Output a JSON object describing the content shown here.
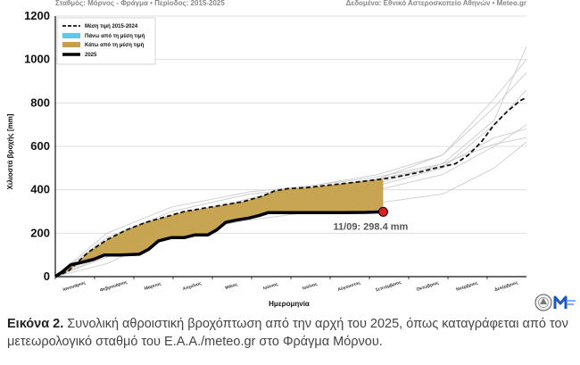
{
  "header": {
    "left": "Σταθμός: Μόρνος - Φράγμα • Περίοδος: 2015-2025",
    "right": "Δεδομένα: Εθνικό Αστεροσκοπείο Αθηνών • Meteo.gr"
  },
  "caption": {
    "label": "Εικόνα 2.",
    "text": "Συνολική αθροιστική βροχόπτωση από την αρχή του 2025, όπως καταγράφεται από τον μετεωρολογικό σταθμό του Ε.Α.Α./meteo.gr στο Φράγμα Μόρνου."
  },
  "logos": [
    {
      "name": "noa-seal",
      "icon": "seal-icon"
    },
    {
      "name": "meteo-logo",
      "icon": "meteo-m-icon",
      "color": "#1f56c4"
    }
  ],
  "colors": {
    "mean": "#111111",
    "above": "#5ec8e8",
    "below": "#c4a04a",
    "current": "#000000",
    "marker": "#e02020",
    "history": "#cccccc"
  },
  "chart_data": {
    "type": "line",
    "xlabel": "Ημερομηνία",
    "ylabel": "Χιλιοστά βροχής [mm]",
    "ylim": [
      0,
      1200
    ],
    "yticks": [
      0,
      200,
      400,
      600,
      800,
      1000,
      1200
    ],
    "months": [
      "Ιανουάριος",
      "Φεβρουάριος",
      "Μάρτιος",
      "Απρίλιος",
      "Μάιος",
      "Ιούνιος",
      "Ιούλιος",
      "Αύγουστος",
      "Σεπτέμβριος",
      "Οκτώβριος",
      "Νοέμβριος",
      "Δεκέμβριος"
    ],
    "xlim_days": [
      0,
      365
    ],
    "legend": [
      "Μέση τιμή 2015-2024",
      "Πάνω από τη μέση τιμή",
      "Κάτω από τη μέση τιμή",
      "2025"
    ],
    "series": [
      {
        "name": "Μέση τιμή 2015-2024",
        "style": "dashed",
        "points": [
          [
            0,
            0
          ],
          [
            10,
            25
          ],
          [
            25,
            110
          ],
          [
            40,
            170
          ],
          [
            55,
            215
          ],
          [
            70,
            250
          ],
          [
            85,
            275
          ],
          [
            100,
            300
          ],
          [
            115,
            315
          ],
          [
            130,
            330
          ],
          [
            145,
            345
          ],
          [
            160,
            370
          ],
          [
            170,
            395
          ],
          [
            180,
            405
          ],
          [
            195,
            410
          ],
          [
            210,
            420
          ],
          [
            225,
            430
          ],
          [
            240,
            440
          ],
          [
            254,
            450
          ],
          [
            265,
            460
          ],
          [
            280,
            478
          ],
          [
            295,
            500
          ],
          [
            310,
            520
          ],
          [
            320,
            560
          ],
          [
            330,
            620
          ],
          [
            340,
            700
          ],
          [
            350,
            760
          ],
          [
            360,
            810
          ],
          [
            365,
            825
          ]
        ]
      },
      {
        "name": "2025",
        "style": "solid-thick",
        "points": [
          [
            0,
            0
          ],
          [
            5,
            20
          ],
          [
            12,
            55
          ],
          [
            20,
            65
          ],
          [
            30,
            80
          ],
          [
            38,
            100
          ],
          [
            50,
            100
          ],
          [
            65,
            103
          ],
          [
            72,
            125
          ],
          [
            80,
            165
          ],
          [
            90,
            180
          ],
          [
            100,
            180
          ],
          [
            108,
            192
          ],
          [
            118,
            192
          ],
          [
            125,
            215
          ],
          [
            132,
            250
          ],
          [
            140,
            260
          ],
          [
            150,
            270
          ],
          [
            158,
            282
          ],
          [
            165,
            295
          ],
          [
            185,
            295
          ],
          [
            200,
            295
          ],
          [
            220,
            295
          ],
          [
            240,
            296
          ],
          [
            254,
            298.4
          ]
        ]
      }
    ],
    "history": [
      [
        [
          0,
          0
        ],
        [
          40,
          120
        ],
        [
          90,
          260
        ],
        [
          150,
          360
        ],
        [
          200,
          420
        ],
        [
          250,
          460
        ],
        [
          300,
          520
        ],
        [
          340,
          720
        ],
        [
          365,
          1060
        ]
      ],
      [
        [
          0,
          0
        ],
        [
          40,
          200
        ],
        [
          90,
          320
        ],
        [
          150,
          390
        ],
        [
          200,
          420
        ],
        [
          250,
          470
        ],
        [
          300,
          560
        ],
        [
          340,
          820
        ],
        [
          365,
          1000
        ]
      ],
      [
        [
          0,
          0
        ],
        [
          40,
          90
        ],
        [
          90,
          230
        ],
        [
          150,
          300
        ],
        [
          200,
          350
        ],
        [
          250,
          400
        ],
        [
          300,
          470
        ],
        [
          340,
          600
        ],
        [
          365,
          700
        ]
      ],
      [
        [
          0,
          0
        ],
        [
          40,
          180
        ],
        [
          90,
          300
        ],
        [
          150,
          380
        ],
        [
          200,
          410
        ],
        [
          250,
          450
        ],
        [
          300,
          510
        ],
        [
          340,
          640
        ],
        [
          365,
          680
        ]
      ],
      [
        [
          0,
          0
        ],
        [
          40,
          60
        ],
        [
          90,
          200
        ],
        [
          150,
          260
        ],
        [
          200,
          300
        ],
        [
          250,
          340
        ],
        [
          300,
          380
        ],
        [
          340,
          500
        ],
        [
          365,
          620
        ]
      ],
      [
        [
          0,
          0
        ],
        [
          40,
          150
        ],
        [
          90,
          280
        ],
        [
          150,
          340
        ],
        [
          200,
          380
        ],
        [
          250,
          420
        ],
        [
          300,
          500
        ],
        [
          340,
          700
        ],
        [
          365,
          860
        ]
      ],
      [
        [
          0,
          0
        ],
        [
          40,
          100
        ],
        [
          90,
          250
        ],
        [
          150,
          330
        ],
        [
          200,
          370
        ],
        [
          250,
          430
        ],
        [
          300,
          520
        ],
        [
          340,
          610
        ],
        [
          365,
          640
        ]
      ],
      [
        [
          0,
          0
        ],
        [
          40,
          130
        ],
        [
          90,
          270
        ],
        [
          150,
          350
        ],
        [
          200,
          400
        ],
        [
          250,
          450
        ],
        [
          300,
          560
        ],
        [
          340,
          780
        ],
        [
          365,
          940
        ]
      ]
    ],
    "annotation": {
      "text": "11/09: 298.4 mm",
      "day": 254,
      "value": 298.4
    }
  }
}
